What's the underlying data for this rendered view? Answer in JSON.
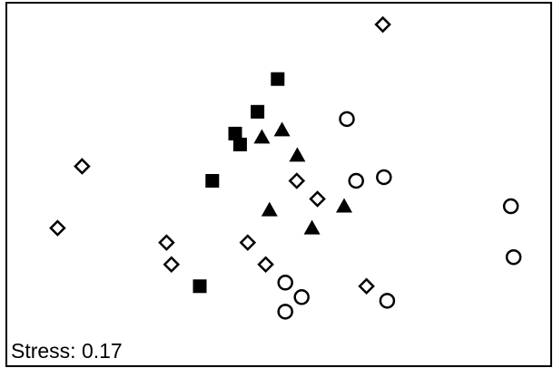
{
  "chart_data": {
    "type": "scatter",
    "title": "",
    "xlabel": "",
    "ylabel": "",
    "grid": false,
    "legend": "none",
    "annotation": "Stress: 0.17",
    "xlim": [
      0,
      100
    ],
    "ylim": [
      0,
      100
    ],
    "series": [
      {
        "marker": "filled-square",
        "color": "#000000",
        "points": [
          [
            49.8,
            79
          ],
          [
            46.1,
            70
          ],
          [
            42,
            64
          ],
          [
            42.9,
            61
          ],
          [
            37.8,
            51
          ],
          [
            35.5,
            22
          ]
        ]
      },
      {
        "marker": "filled-triangle",
        "color": "#000000",
        "points": [
          [
            50.6,
            65
          ],
          [
            46.9,
            63
          ],
          [
            53.4,
            58
          ],
          [
            48.3,
            43
          ],
          [
            62,
            44
          ],
          [
            56.1,
            38
          ]
        ]
      },
      {
        "marker": "open-circle",
        "color": "#000000",
        "points": [
          [
            62.5,
            68
          ],
          [
            64.2,
            51
          ],
          [
            69.3,
            52
          ],
          [
            92.6,
            44
          ],
          [
            93.1,
            30
          ],
          [
            51.2,
            23
          ],
          [
            54.2,
            19
          ],
          [
            51.2,
            15
          ],
          [
            69.9,
            18
          ]
        ]
      },
      {
        "marker": "open-diamond",
        "color": "#000000",
        "points": [
          [
            69.1,
            94
          ],
          [
            13.9,
            55
          ],
          [
            53.3,
            51
          ],
          [
            57.1,
            46
          ],
          [
            9.4,
            38
          ],
          [
            29.4,
            34
          ],
          [
            30.3,
            28
          ],
          [
            44.3,
            34
          ],
          [
            47.6,
            28
          ],
          [
            66.1,
            22
          ]
        ]
      }
    ]
  }
}
